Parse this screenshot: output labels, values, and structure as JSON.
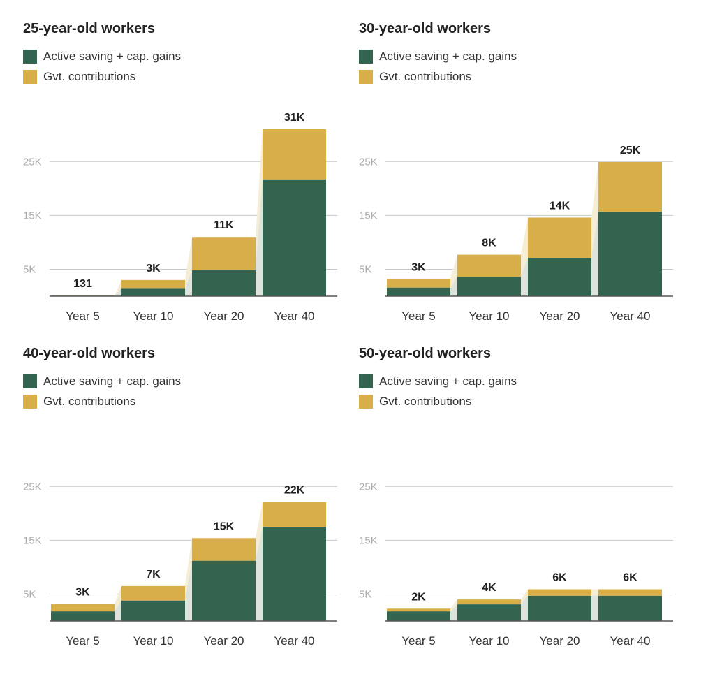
{
  "colors": {
    "savings": "#336450",
    "government": "#D8AE48",
    "connector": "#F6EDD5",
    "grid": "#C8C8C8",
    "axis": "#555555",
    "tick_label": "#AAAAAA",
    "text": "#222222"
  },
  "legend": {
    "savings": "Active saving + cap. gains",
    "government": "Gvt. contributions"
  },
  "chart_data": [
    {
      "type": "bar",
      "stacked": true,
      "title": "25-year-old workers",
      "categories": [
        "Year 5",
        "Year 10",
        "Year 20",
        "Year 40"
      ],
      "series": [
        {
          "name": "Active saving + cap. gains",
          "values": [
            100,
            1500,
            4800,
            21700
          ]
        },
        {
          "name": "Gvt. contributions",
          "values": [
            31,
            1500,
            6200,
            9300
          ]
        }
      ],
      "total_labels": [
        "131",
        "3K",
        "11K",
        "31K"
      ],
      "yticks": [
        "5K",
        "15K",
        "25K"
      ],
      "ylim": [
        0,
        31000
      ]
    },
    {
      "type": "bar",
      "stacked": true,
      "title": "30-year-old workers",
      "categories": [
        "Year 5",
        "Year 10",
        "Year 20",
        "Year 40"
      ],
      "series": [
        {
          "name": "Active saving + cap. gains",
          "values": [
            1600,
            3600,
            7100,
            15700
          ]
        },
        {
          "name": "Gvt. contributions",
          "values": [
            1600,
            4100,
            7500,
            9200
          ]
        }
      ],
      "total_labels": [
        "3K",
        "8K",
        "14K",
        "25K"
      ],
      "yticks": [
        "5K",
        "15K",
        "25K"
      ],
      "ylim": [
        0,
        31000
      ]
    },
    {
      "type": "bar",
      "stacked": true,
      "title": "40-year-old workers",
      "categories": [
        "Year 5",
        "Year 10",
        "Year 20",
        "Year 40"
      ],
      "series": [
        {
          "name": "Active saving + cap. gains",
          "values": [
            1800,
            3800,
            11200,
            17500
          ]
        },
        {
          "name": "Gvt. contributions",
          "values": [
            1400,
            2700,
            4200,
            4600
          ]
        }
      ],
      "total_labels": [
        "3K",
        "7K",
        "15K",
        "22K"
      ],
      "yticks": [
        "5K",
        "15K",
        "25K"
      ],
      "ylim": [
        0,
        31000
      ]
    },
    {
      "type": "bar",
      "stacked": true,
      "title": "50-year-old workers",
      "categories": [
        "Year 5",
        "Year 10",
        "Year 20",
        "Year 40"
      ],
      "series": [
        {
          "name": "Active saving + cap. gains",
          "values": [
            1800,
            3100,
            4700,
            4700
          ]
        },
        {
          "name": "Gvt. contributions",
          "values": [
            500,
            900,
            1200,
            1200
          ]
        }
      ],
      "total_labels": [
        "2K",
        "4K",
        "6K",
        "6K"
      ],
      "yticks": [
        "5K",
        "15K",
        "25K"
      ],
      "ylim": [
        0,
        31000
      ]
    }
  ]
}
